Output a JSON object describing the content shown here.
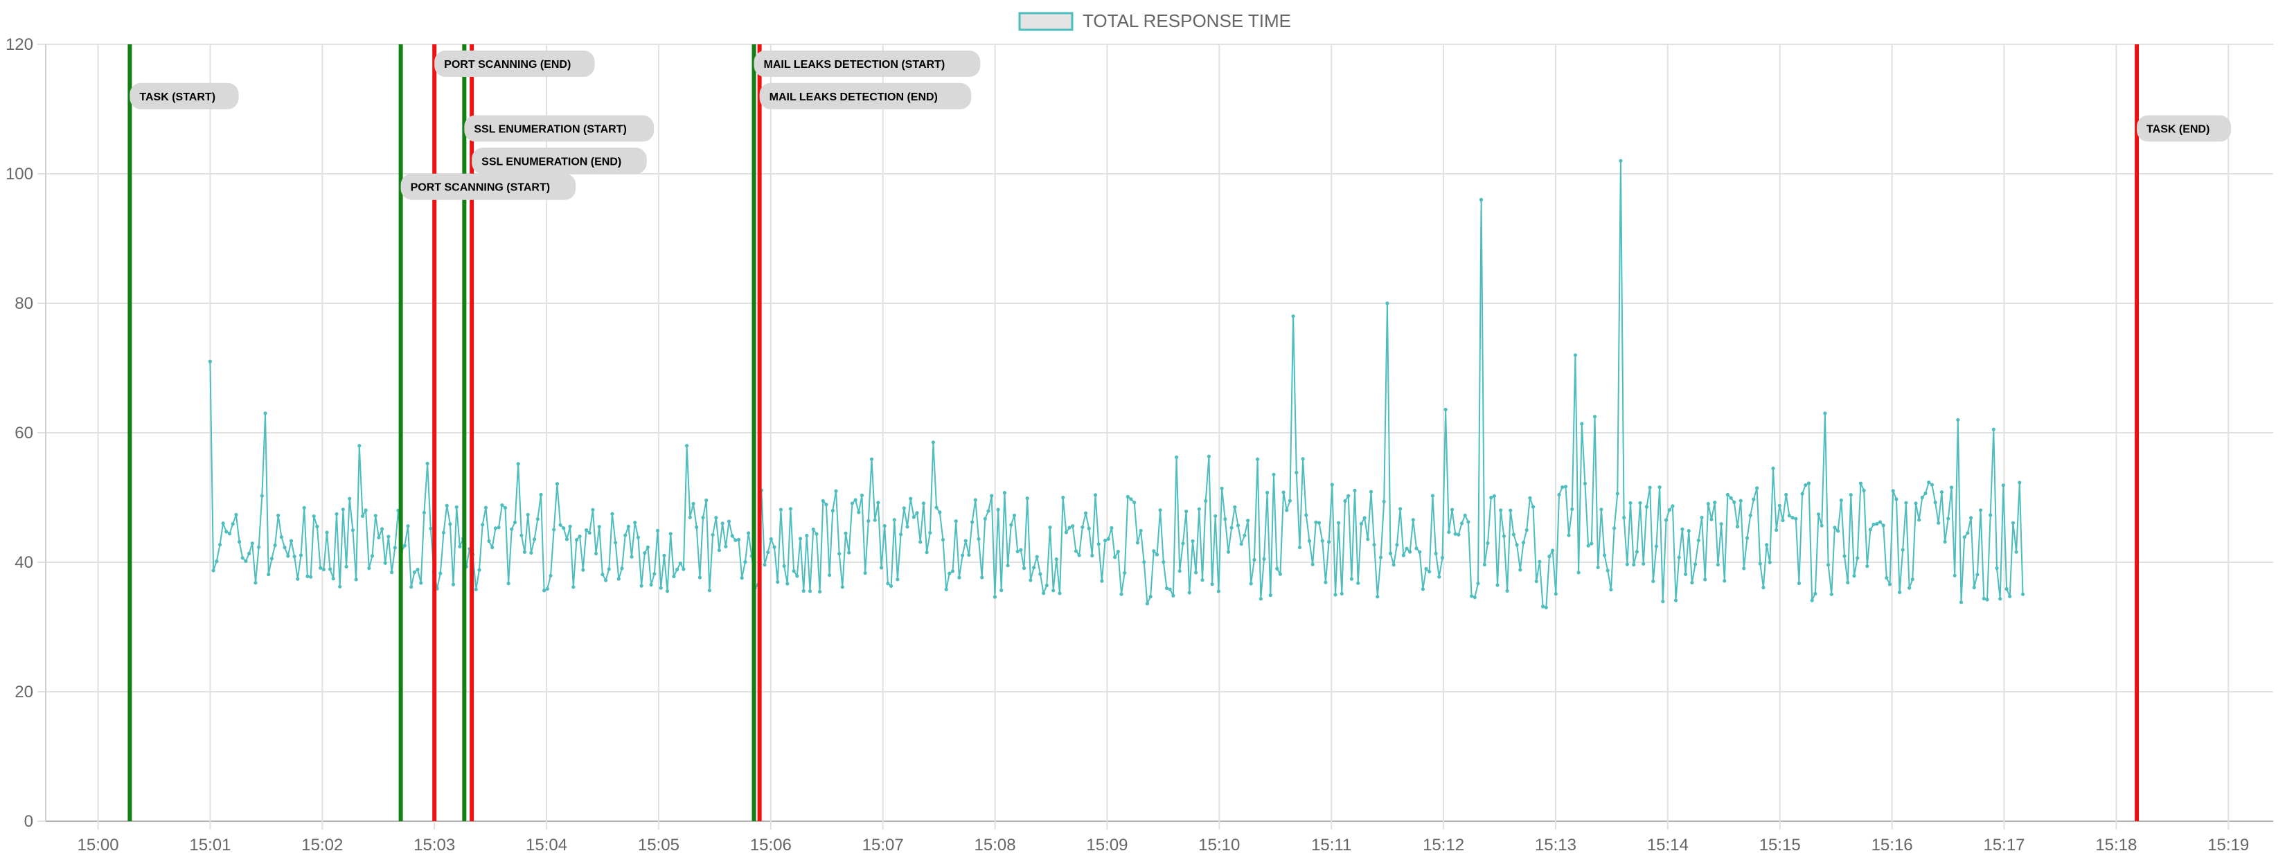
{
  "chart_data": {
    "type": "line",
    "title": "",
    "legend": {
      "position": "top",
      "entries": [
        {
          "label": "TOTAL RESPONSE TIME",
          "fill": "#e4e4e4",
          "stroke": "#4dbdbd"
        }
      ]
    },
    "xlabel": "",
    "ylabel": "",
    "grid": true,
    "x_axis": {
      "unit": "minute",
      "range": [
        "14:59:32",
        "15:19:24"
      ],
      "ticks": [
        "15:00",
        "15:01",
        "15:02",
        "15:03",
        "15:04",
        "15:05",
        "15:06",
        "15:07",
        "15:08",
        "15:09",
        "15:10",
        "15:11",
        "15:12",
        "15:13",
        "15:14",
        "15:15",
        "15:16",
        "15:17",
        "15:18",
        "15:19"
      ]
    },
    "y_axis": {
      "range": [
        0,
        120
      ],
      "ticks": [
        0,
        20,
        40,
        60,
        80,
        100,
        120
      ]
    },
    "series": [
      {
        "name": "TOTAL RESPONSE TIME",
        "color": "#4dbdbd",
        "start": "15:01:00",
        "end": "15:17:10",
        "samples": 560,
        "peaks": [
          {
            "x": "15:01:00",
            "y": 71
          },
          {
            "x": "15:01:30",
            "y": 63
          },
          {
            "x": "15:02:20",
            "y": 58
          },
          {
            "x": "15:05:15",
            "y": 58
          },
          {
            "x": "15:10:40",
            "y": 78
          },
          {
            "x": "15:11:30",
            "y": 80
          },
          {
            "x": "15:12:20",
            "y": 96
          },
          {
            "x": "15:13:10",
            "y": 72
          },
          {
            "x": "15:13:35",
            "y": 102
          },
          {
            "x": "15:15:25",
            "y": 63
          },
          {
            "x": "15:16:35",
            "y": 62
          }
        ],
        "baseline": 41,
        "min": 33
      }
    ],
    "annotations": [
      {
        "label": "TASK (START)",
        "x": "15:00:17",
        "color": "#138013",
        "label_y": 112
      },
      {
        "label": "PORT SCANNING (START)",
        "x": "15:02:42",
        "color": "#138013",
        "label_y": 98
      },
      {
        "label": "PORT SCANNING (END)",
        "x": "15:03:00",
        "color": "#ee1111",
        "label_y": 117
      },
      {
        "label": "SSL ENUMERATION (START)",
        "x": "15:03:16",
        "color": "#138013",
        "label_y": 107
      },
      {
        "label": "SSL ENUMERATION (END)",
        "x": "15:03:20",
        "color": "#ee1111",
        "label_y": 102
      },
      {
        "label": "MAIL LEAKS DETECTION (START)",
        "x": "15:05:51",
        "color": "#138013",
        "label_y": 117
      },
      {
        "label": "MAIL LEAKS DETECTION (END)",
        "x": "15:05:54",
        "color": "#ee1111",
        "label_y": 112
      },
      {
        "label": "TASK (END)",
        "x": "15:18:11",
        "color": "#ee1111",
        "label_y": 107
      }
    ]
  }
}
